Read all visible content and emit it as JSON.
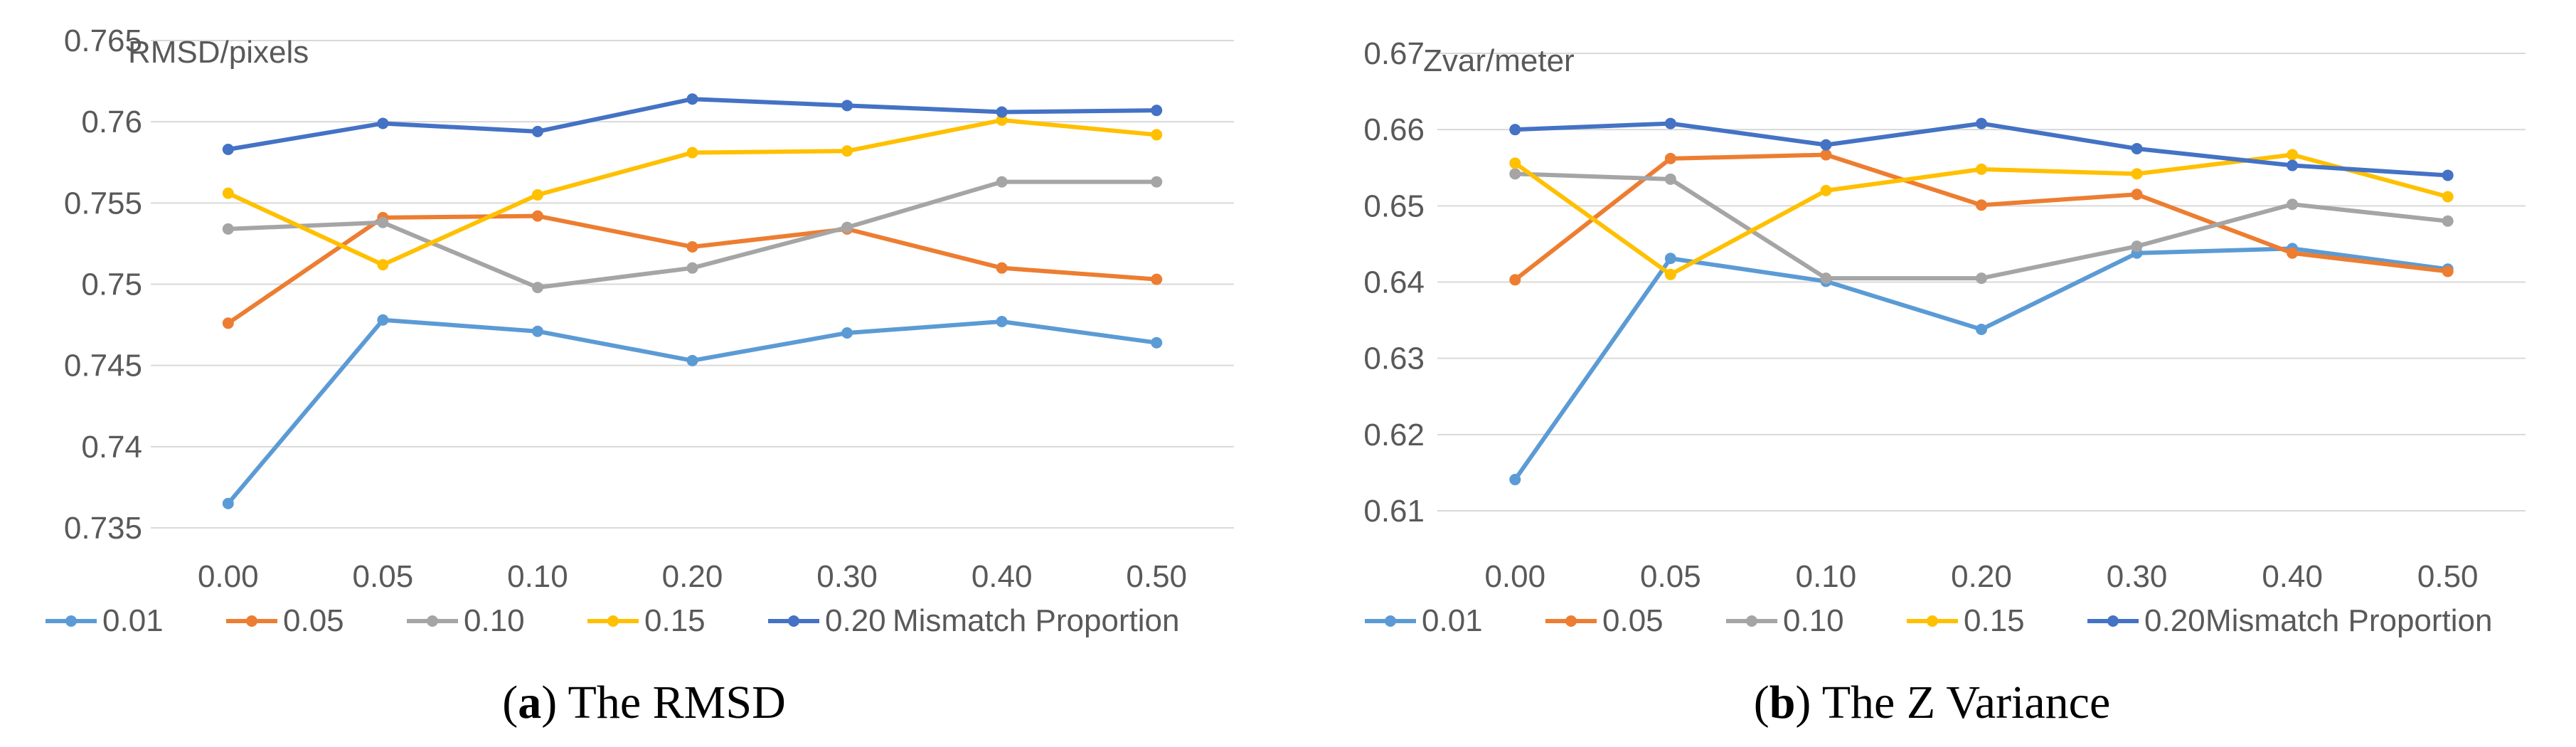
{
  "chart_data": [
    {
      "type": "line",
      "panel_label": "a",
      "caption": "The RMSD",
      "ylabel": "RMSD/pixels",
      "xlabel": "Mismatch Proportion",
      "categories": [
        "0.00",
        "0.05",
        "0.10",
        "0.20",
        "0.30",
        "0.40",
        "0.50"
      ],
      "ylim": [
        0.735,
        0.765
      ],
      "yticks": [
        0.735,
        0.74,
        0.745,
        0.75,
        0.755,
        0.76,
        0.765
      ],
      "ytick_labels": [
        "0.735",
        "0.74",
        "0.745",
        "0.75",
        "0.755",
        "0.76",
        "0.765"
      ],
      "grid": true,
      "legend_position": "bottom",
      "series": [
        {
          "name": "0.01",
          "color": "#5B9BD5",
          "values": [
            0.7365,
            0.7478,
            0.7471,
            0.7453,
            0.747,
            0.7477,
            0.7464
          ]
        },
        {
          "name": "0.05",
          "color": "#ED7D31",
          "values": [
            0.7476,
            0.7541,
            0.7542,
            0.7523,
            0.7534,
            0.751,
            0.7503
          ]
        },
        {
          "name": "0.10",
          "color": "#A5A5A5",
          "values": [
            0.7534,
            0.7538,
            0.7498,
            0.751,
            0.7535,
            0.7563,
            0.7563
          ]
        },
        {
          "name": "0.15",
          "color": "#FFC000",
          "values": [
            0.7556,
            0.7512,
            0.7555,
            0.7581,
            0.7582,
            0.7601,
            0.7592
          ]
        },
        {
          "name": "0.20",
          "color": "#4472C4",
          "values": [
            0.7583,
            0.7599,
            0.7594,
            0.7614,
            0.761,
            0.7606,
            0.7607
          ]
        }
      ]
    },
    {
      "type": "line",
      "panel_label": "b",
      "caption": "The Z Variance",
      "ylabel": "Zvar/meter",
      "xlabel": "Mismatch Proportion",
      "categories": [
        "0.00",
        "0.05",
        "0.10",
        "0.20",
        "0.30",
        "0.40",
        "0.50"
      ],
      "ylim": [
        0.61,
        0.67
      ],
      "yticks": [
        0.61,
        0.62,
        0.63,
        0.64,
        0.65,
        0.66,
        0.67
      ],
      "ytick_labels": [
        "0.61",
        "0.62",
        "0.63",
        "0.64",
        "0.65",
        "0.66",
        "0.67"
      ],
      "grid": true,
      "legend_position": "bottom",
      "series": [
        {
          "name": "0.01",
          "color": "#5B9BD5",
          "values": [
            0.6141,
            0.6431,
            0.6401,
            0.6338,
            0.6438,
            0.6444,
            0.6417
          ]
        },
        {
          "name": "0.05",
          "color": "#ED7D31",
          "values": [
            0.6403,
            0.6562,
            0.6567,
            0.6501,
            0.6515,
            0.6438,
            0.6414
          ]
        },
        {
          "name": "0.10",
          "color": "#A5A5A5",
          "values": [
            0.6542,
            0.6535,
            0.6405,
            0.6405,
            0.6447,
            0.6502,
            0.648
          ]
        },
        {
          "name": "0.15",
          "color": "#FFC000",
          "values": [
            0.6556,
            0.641,
            0.652,
            0.6548,
            0.6542,
            0.6567,
            0.6512
          ]
        },
        {
          "name": "0.20",
          "color": "#4472C4",
          "values": [
            0.66,
            0.6608,
            0.658,
            0.6608,
            0.6575,
            0.6553,
            0.654
          ]
        }
      ]
    }
  ]
}
